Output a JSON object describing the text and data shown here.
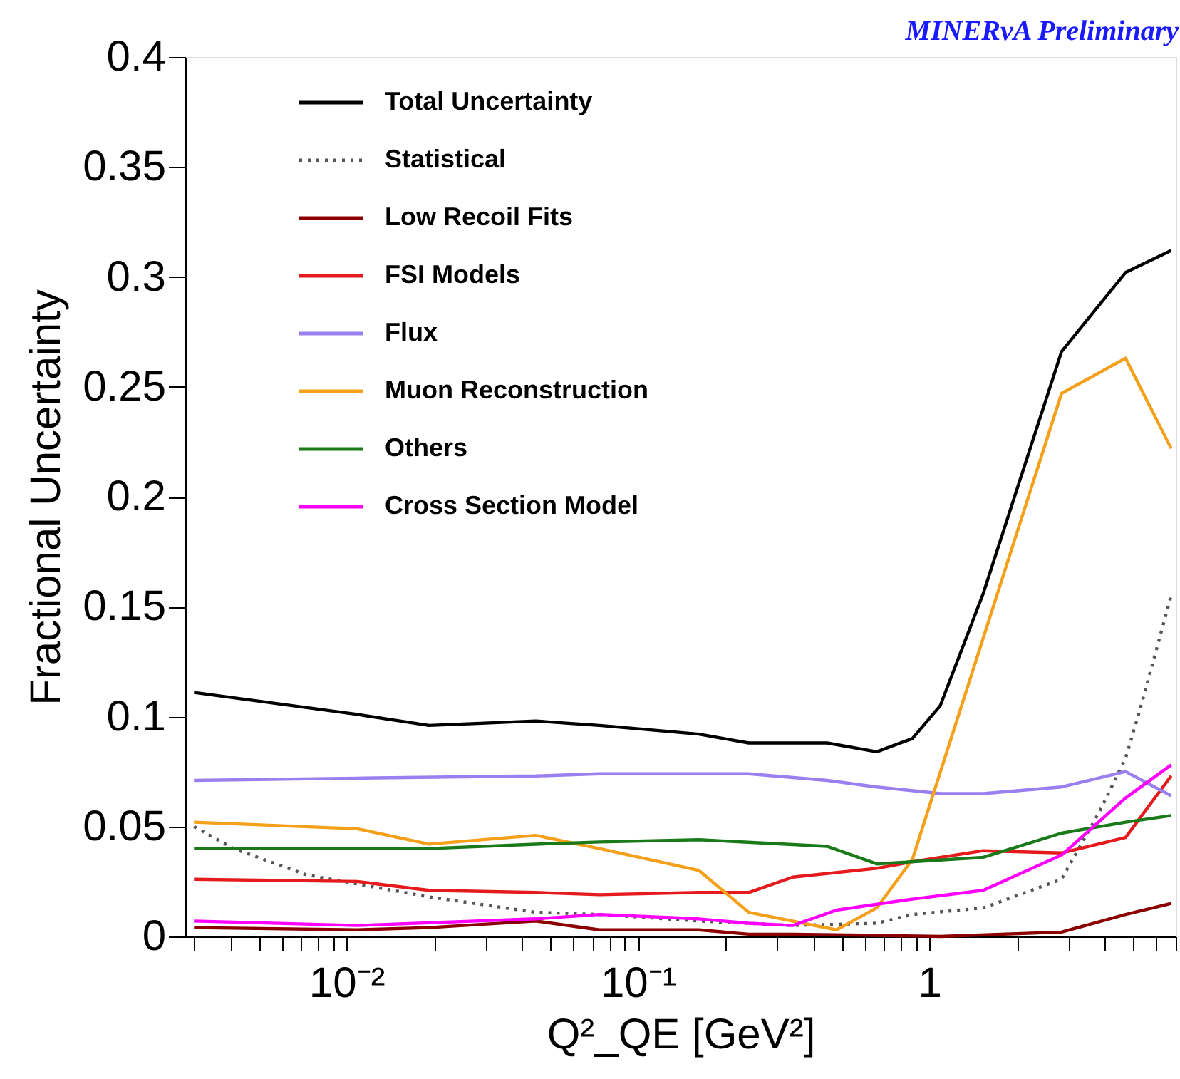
{
  "chart_data": {
    "type": "line",
    "xlabel": "Q²_QE [GeV²]",
    "ylabel": "Fractional Uncertainty",
    "annotations": [
      "MINERνA Preliminary"
    ],
    "log": "x",
    "grid": false,
    "legend": "top left",
    "marker": "none",
    "line_style": "solid",
    "xlim": [
      0.0028,
      7
    ],
    "ylim": [
      0,
      0.4
    ],
    "xticks": [
      {
        "value": 0.003,
        "label": null
      },
      {
        "value": 0.004,
        "label": null
      },
      {
        "value": 0.005,
        "label": null
      },
      {
        "value": 0.006,
        "label": null
      },
      {
        "value": 0.007,
        "label": null
      },
      {
        "value": 0.008,
        "label": null
      },
      {
        "value": 0.009,
        "label": null
      },
      {
        "value": 0.01,
        "label": "10⁻²"
      },
      {
        "value": 0.02,
        "label": null
      },
      {
        "value": 0.03,
        "label": null
      },
      {
        "value": 0.04,
        "label": null
      },
      {
        "value": 0.05,
        "label": null
      },
      {
        "value": 0.06,
        "label": null
      },
      {
        "value": 0.07,
        "label": null
      },
      {
        "value": 0.08,
        "label": null
      },
      {
        "value": 0.09,
        "label": null
      },
      {
        "value": 0.1,
        "label": "10⁻¹"
      },
      {
        "value": 0.2,
        "label": null
      },
      {
        "value": 0.3,
        "label": null
      },
      {
        "value": 0.4,
        "label": null
      },
      {
        "value": 0.5,
        "label": null
      },
      {
        "value": 0.6,
        "label": null
      },
      {
        "value": 0.7,
        "label": null
      },
      {
        "value": 0.8,
        "label": null
      },
      {
        "value": 0.9,
        "label": null
      },
      1,
      {
        "value": 2,
        "label": null
      },
      {
        "value": 3,
        "label": null
      },
      {
        "value": 4,
        "label": null
      },
      {
        "value": 5,
        "label": null
      },
      {
        "value": 6,
        "label": null
      },
      {
        "value": 7,
        "label": null
      }
    ],
    "yticks": [
      0,
      0.05,
      0.1,
      0.15,
      0.2,
      0.25,
      0.3,
      0.35,
      0.4
    ],
    "series": [
      {
        "name": "Total Uncertainty",
        "color": "#000000",
        "x": [
          0.003,
          0.0109,
          0.0192,
          0.0446,
          0.0738,
          0.162,
          0.24,
          0.446,
          0.66,
          0.874,
          1.09,
          1.53,
          2.84,
          4.71,
          6.75
        ],
        "values": [
          0.111,
          0.101,
          0.096,
          0.098,
          0.096,
          0.092,
          0.088,
          0.088,
          0.084,
          0.09,
          0.105,
          0.156,
          0.266,
          0.302,
          0.312
        ]
      },
      {
        "name": "Statistical",
        "color": "#555555",
        "line_style": "dotted",
        "x": [
          0.003,
          0.0041,
          0.0073,
          0.0192,
          0.0446,
          0.0738,
          0.162,
          0.34,
          0.66,
          0.874,
          1.53,
          2.84,
          3.84,
          4.71,
          5.3,
          6.75
        ],
        "values": [
          0.05,
          0.04,
          0.028,
          0.018,
          0.011,
          0.01,
          0.007,
          0.005,
          0.006,
          0.01,
          0.013,
          0.026,
          0.057,
          0.081,
          0.104,
          0.155
        ]
      },
      {
        "name": "Low Recoil Fits",
        "color": "#8b0000",
        "x": [
          0.003,
          0.0109,
          0.0192,
          0.0446,
          0.0738,
          0.162,
          0.24,
          0.34,
          0.66,
          1.09,
          2.84,
          4.71,
          6.75
        ],
        "values": [
          0.004,
          0.003,
          0.004,
          0.007,
          0.003,
          0.003,
          0.001,
          0.001,
          0.0005,
          0,
          0.002,
          0.01,
          0.015
        ]
      },
      {
        "name": "FSI Models",
        "color": "#e41a1c",
        "x": [
          0.003,
          0.0109,
          0.0192,
          0.0446,
          0.0738,
          0.162,
          0.24,
          0.34,
          0.66,
          0.874,
          1.53,
          2.84,
          4.71,
          6.75
        ],
        "values": [
          0.026,
          0.025,
          0.021,
          0.02,
          0.019,
          0.02,
          0.02,
          0.027,
          0.031,
          0.034,
          0.039,
          0.038,
          0.045,
          0.073
        ]
      },
      {
        "name": "Flux",
        "color": "#9a7ff0",
        "x": [
          0.003,
          0.0109,
          0.0446,
          0.0738,
          0.24,
          0.446,
          0.66,
          1.09,
          1.53,
          2.84,
          4.71,
          6.75
        ],
        "values": [
          0.071,
          0.072,
          0.073,
          0.074,
          0.074,
          0.071,
          0.068,
          0.065,
          0.065,
          0.068,
          0.075,
          0.064
        ]
      },
      {
        "name": "Muon Reconstruction",
        "color": "#f5a01a",
        "x": [
          0.003,
          0.0109,
          0.0192,
          0.0446,
          0.0738,
          0.162,
          0.24,
          0.48,
          0.66,
          0.874,
          2.84,
          4.71,
          6.75
        ],
        "values": [
          0.052,
          0.049,
          0.042,
          0.046,
          0.04,
          0.03,
          0.011,
          0.003,
          0.013,
          0.035,
          0.247,
          0.263,
          0.222
        ]
      },
      {
        "name": "Others",
        "color": "#1a7a1a",
        "x": [
          0.003,
          0.0192,
          0.0446,
          0.0738,
          0.162,
          0.446,
          0.66,
          1.53,
          2.84,
          4.71,
          6.75
        ],
        "values": [
          0.04,
          0.04,
          0.042,
          0.043,
          0.044,
          0.041,
          0.033,
          0.036,
          0.047,
          0.052,
          0.055
        ]
      },
      {
        "name": "Cross Section Model",
        "color": "#ff00ff",
        "x": [
          0.003,
          0.0109,
          0.0446,
          0.0738,
          0.162,
          0.24,
          0.34,
          0.48,
          0.874,
          1.53,
          2.84,
          4.71,
          6.75
        ],
        "values": [
          0.007,
          0.005,
          0.008,
          0.01,
          0.008,
          0.006,
          0.005,
          0.012,
          0.017,
          0.021,
          0.037,
          0.063,
          0.078
        ]
      }
    ]
  }
}
